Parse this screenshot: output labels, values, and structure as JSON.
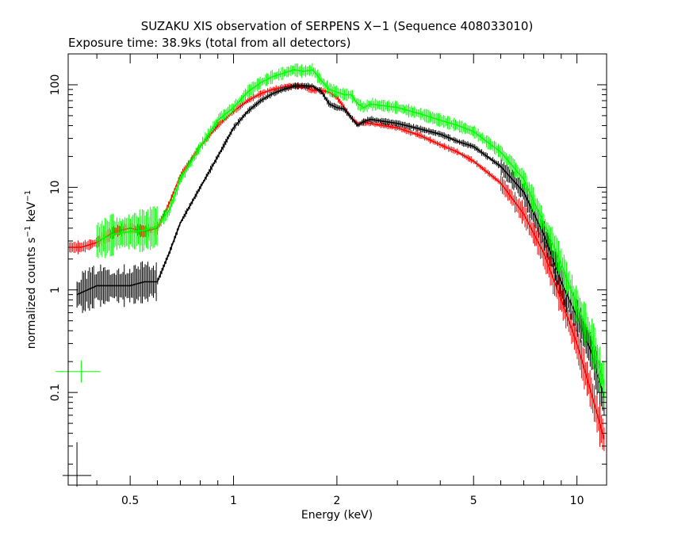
{
  "chart_data": {
    "type": "scatter",
    "title": "SUZAKU XIS observation of SERPENS X−1 (Sequence 408033010)",
    "subtitle": "Exposure time: 38.9ks (total from all detectors)",
    "xlabel": "Energy (keV)",
    "ylabel_main": "normalized counts s",
    "ylabel_sup1": "−1",
    "ylabel_mid": " keV",
    "ylabel_sup2": "−1",
    "x_scale": "log",
    "y_scale": "log",
    "xlim": [
      0.33,
      12.2
    ],
    "ylim": [
      0.0125,
      200
    ],
    "x_ticks": [
      {
        "value": 0.5,
        "label": "0.5"
      },
      {
        "value": 1,
        "label": "1"
      },
      {
        "value": 2,
        "label": "2"
      },
      {
        "value": 5,
        "label": "5"
      },
      {
        "value": 10,
        "label": "10"
      }
    ],
    "y_ticks": [
      {
        "value": 0.1,
        "label": "0.1"
      },
      {
        "value": 1,
        "label": "1"
      },
      {
        "value": 10,
        "label": "10"
      },
      {
        "value": 100,
        "label": "100"
      }
    ],
    "grid": false,
    "legend": "none",
    "series": [
      {
        "color": "#ff0000",
        "x": [
          0.33,
          0.36,
          0.4,
          0.45,
          0.5,
          0.55,
          0.6,
          0.65,
          0.7,
          0.8,
          0.9,
          1.0,
          1.1,
          1.2,
          1.3,
          1.4,
          1.5,
          1.6,
          1.7,
          1.8,
          1.9,
          2.0,
          2.1,
          2.2,
          2.3,
          2.4,
          2.5,
          3.0,
          3.5,
          4.0,
          4.5,
          5.0,
          6.0,
          7.0,
          8.0,
          9.0,
          10.0,
          11.0,
          12.0
        ],
        "y": [
          2.6,
          2.6,
          2.9,
          3.7,
          4.0,
          3.7,
          4.0,
          7.0,
          13,
          25,
          40,
          55,
          70,
          82,
          90,
          95,
          98,
          95,
          88,
          88,
          85,
          75,
          60,
          48,
          42,
          43,
          42,
          38,
          32,
          26,
          22,
          18,
          11,
          5.5,
          2.3,
          0.8,
          0.3,
          0.1,
          0.035
        ]
      },
      {
        "color": "#000000",
        "x": [
          0.35,
          0.4,
          0.45,
          0.5,
          0.55,
          0.6,
          0.65,
          0.7,
          0.8,
          0.9,
          1.0,
          1.1,
          1.2,
          1.3,
          1.4,
          1.5,
          1.6,
          1.7,
          1.8,
          1.9,
          2.0,
          2.1,
          2.2,
          2.3,
          2.4,
          2.5,
          3.0,
          3.5,
          4.0,
          4.5,
          5.0,
          6.0,
          7.0,
          8.0,
          9.0,
          10.0,
          11.0,
          12.0
        ],
        "y": [
          0.9,
          1.1,
          1.1,
          1.1,
          1.2,
          1.2,
          2.3,
          4.5,
          10,
          20,
          38,
          55,
          70,
          82,
          90,
          97,
          98,
          97,
          86,
          65,
          60,
          58,
          48,
          40,
          44,
          46,
          42,
          37,
          33,
          28,
          25,
          16,
          9,
          3.5,
          1.2,
          0.55,
          0.25,
          0.09
        ]
      },
      {
        "color": "#00ff00",
        "x": [
          0.4,
          0.45,
          0.5,
          0.55,
          0.6,
          0.65,
          0.7,
          0.8,
          0.9,
          1.0,
          1.1,
          1.2,
          1.3,
          1.4,
          1.5,
          1.6,
          1.7,
          1.8,
          1.9,
          2.0,
          2.1,
          2.2,
          2.3,
          2.4,
          2.5,
          3.0,
          3.5,
          4.0,
          4.5,
          5.0,
          6.0,
          7.0,
          8.0,
          9.0,
          10.0,
          11.0,
          12.0
        ],
        "y": [
          3.0,
          3.5,
          3.7,
          3.8,
          4.2,
          6.0,
          12,
          25,
          45,
          60,
          85,
          105,
          120,
          130,
          140,
          135,
          140,
          110,
          90,
          85,
          80,
          80,
          65,
          60,
          65,
          60,
          52,
          45,
          40,
          35,
          22,
          12,
          4.5,
          1.8,
          0.7,
          0.35,
          0.12
        ]
      }
    ],
    "annotations": [
      {
        "color": "#00ff00",
        "x": 0.36,
        "y": 0.16
      },
      {
        "color": "#000000",
        "x": 0.35,
        "y": 0.0155
      }
    ]
  }
}
